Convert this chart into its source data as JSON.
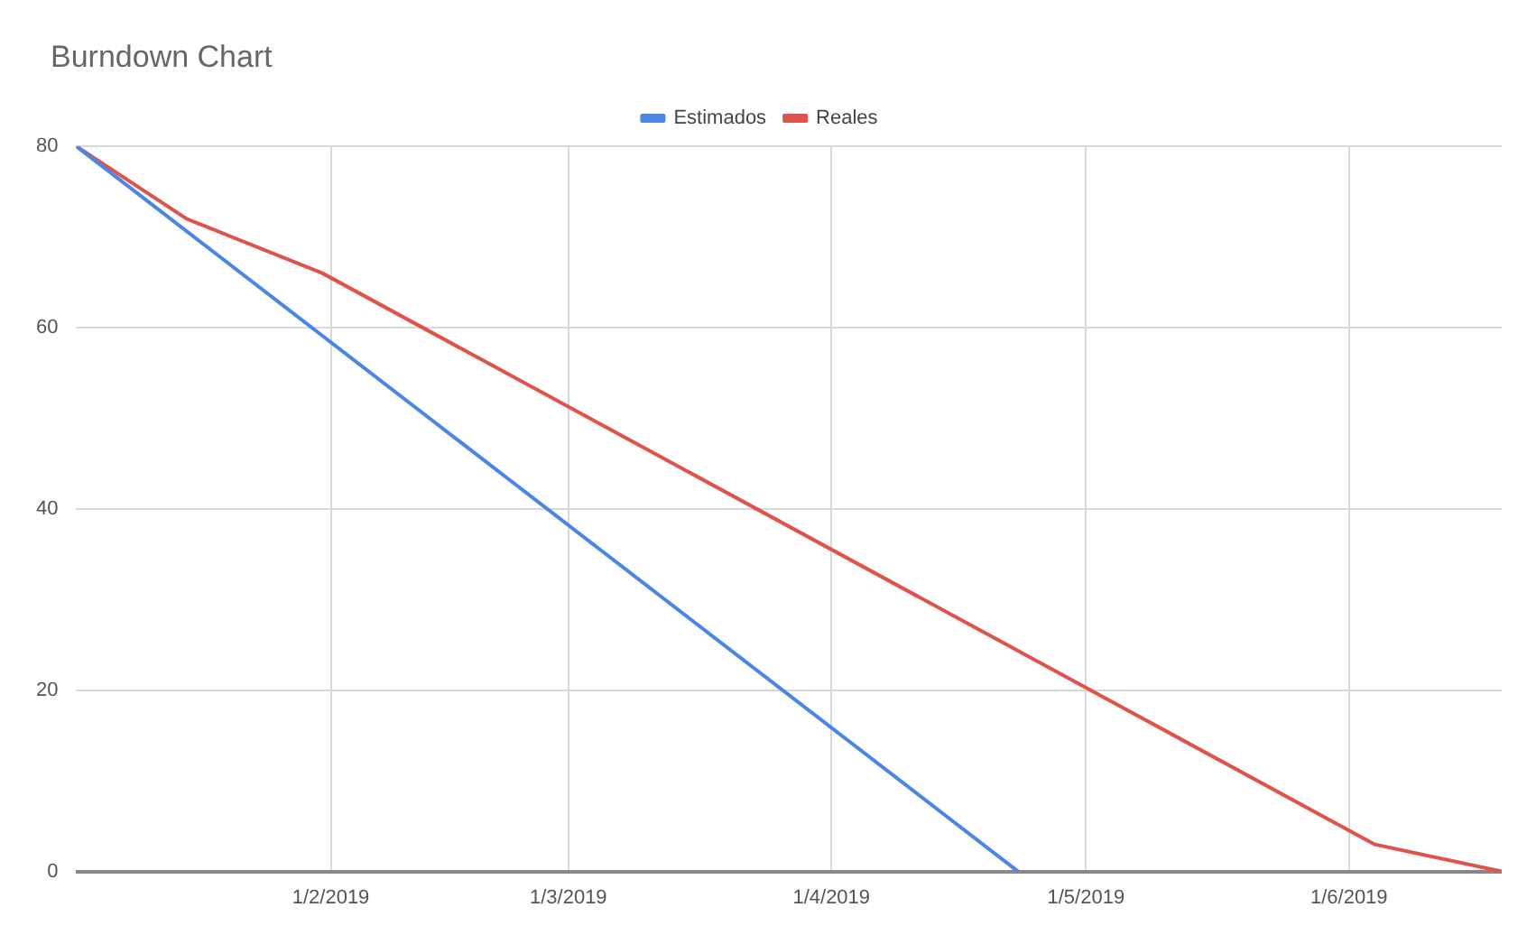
{
  "chart_data": {
    "type": "line",
    "title": "Burndown Chart",
    "xlim": [
      "2019-01-02",
      "2019-06-19"
    ],
    "xticks": [
      {
        "value": "2019-02-01",
        "label": "1/2/2019"
      },
      {
        "value": "2019-03-01",
        "label": "1/3/2019"
      },
      {
        "value": "2019-04-01",
        "label": "1/4/2019"
      },
      {
        "value": "2019-05-01",
        "label": "1/5/2019"
      },
      {
        "value": "2019-06-01",
        "label": "1/6/2019"
      }
    ],
    "ylim": [
      0,
      80
    ],
    "yticks": [
      0,
      20,
      40,
      60,
      80
    ],
    "series": [
      {
        "name": "Estimados",
        "color": "#4a86e8",
        "x": [
          "2019-01-02",
          "2019-04-23"
        ],
        "values": [
          80,
          0
        ]
      },
      {
        "name": "Reales",
        "color": "#e0534a",
        "x": [
          "2019-01-02",
          "2019-01-15",
          "2019-01-31",
          "2019-06-04",
          "2019-06-19"
        ],
        "values": [
          80,
          72,
          66,
          3,
          0
        ]
      }
    ],
    "grid": true,
    "legend": "top",
    "marker": "none",
    "line_style": "solid"
  }
}
